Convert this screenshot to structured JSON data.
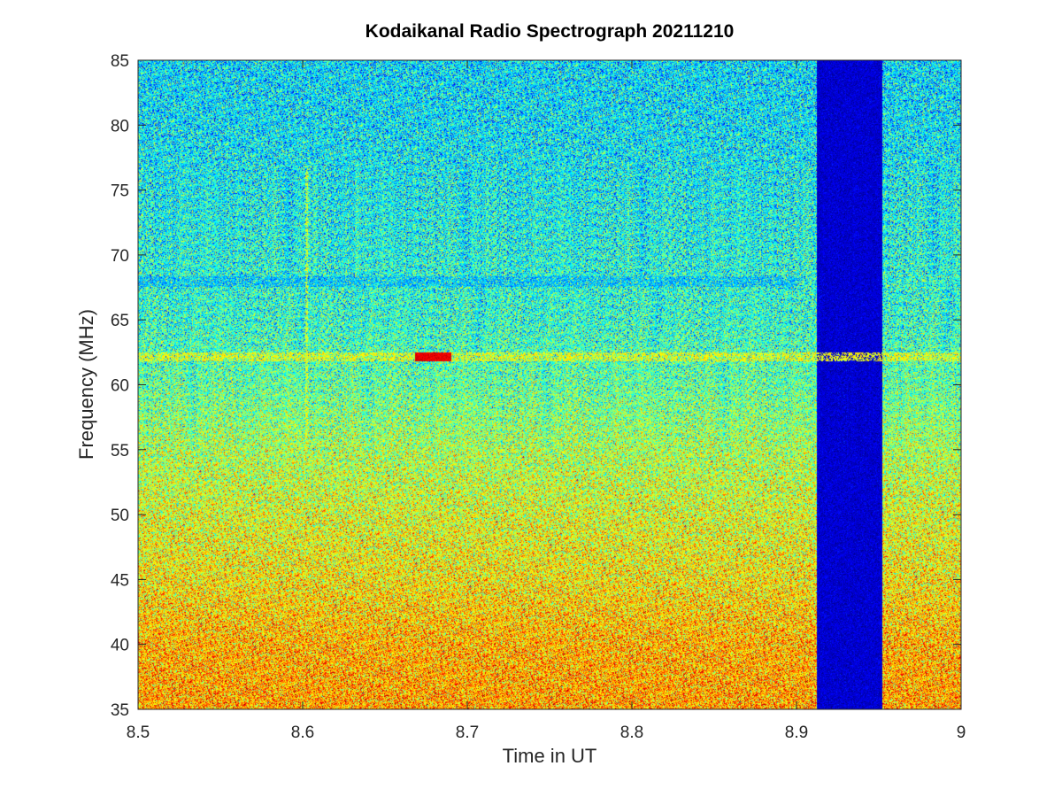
{
  "chart_data": {
    "type": "heatmap",
    "title": "Kodaikanal Radio Spectrograph  20211210",
    "xlabel": "Time in UT",
    "ylabel": "Frequency (MHz)",
    "xlim": [
      8.5,
      9.0
    ],
    "ylim": [
      35,
      85
    ],
    "x_ticks": [
      8.5,
      8.6,
      8.7,
      8.8,
      8.9,
      9.0
    ],
    "x_tick_labels": [
      "8.5",
      "8.6",
      "8.7",
      "8.8",
      "8.9",
      "9"
    ],
    "y_ticks": [
      35,
      40,
      45,
      50,
      55,
      60,
      65,
      70,
      75,
      80,
      85
    ],
    "y_tick_labels": [
      "35",
      "40",
      "45",
      "50",
      "55",
      "60",
      "65",
      "70",
      "75",
      "80",
      "85"
    ],
    "colormap": "jet",
    "grid": false,
    "intensity_profile": {
      "frequency_mhz": [
        35,
        40,
        45,
        50,
        55,
        60,
        65,
        70,
        75,
        80,
        85
      ],
      "relative_level": [
        0.72,
        0.7,
        0.64,
        0.6,
        0.55,
        0.47,
        0.42,
        0.4,
        0.38,
        0.36,
        0.35
      ]
    },
    "features": [
      {
        "kind": "data-gap",
        "time_start": 8.912,
        "time_end": 8.952,
        "freq_range": [
          35,
          85
        ],
        "relative_level": 0.08
      },
      {
        "kind": "narrowband-line",
        "time_range": [
          8.5,
          9.0
        ],
        "frequency_mhz": 62.2,
        "relative_level": 0.62
      },
      {
        "kind": "narrowband-burst",
        "time_range": [
          8.668,
          8.69
        ],
        "frequency_mhz": 62.2,
        "relative_level": 0.9
      },
      {
        "kind": "dark-band",
        "time_range": [
          8.5,
          8.9
        ],
        "frequency_mhz": 68,
        "relative_level": 0.3
      },
      {
        "kind": "vertical-streak",
        "time": 8.602,
        "freq_range": [
          55,
          77
        ],
        "relative_level": 0.6
      }
    ]
  }
}
